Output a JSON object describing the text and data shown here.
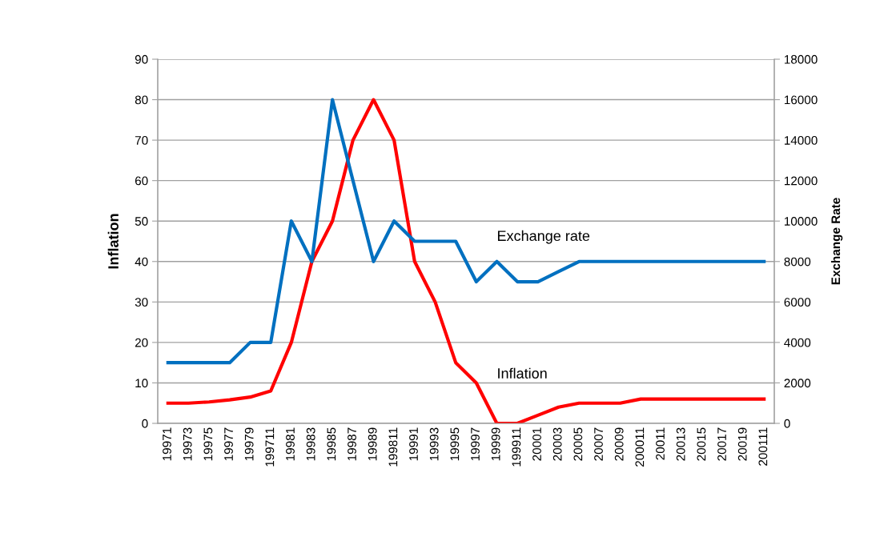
{
  "chart_data": {
    "type": "line",
    "xlabel": null,
    "ylabel": "Inflation",
    "y2label": "Exchange Rate",
    "categories": [
      "19971",
      "19973",
      "19975",
      "19977",
      "19979",
      "199711",
      "19981",
      "19983",
      "19985",
      "19987",
      "19989",
      "199811",
      "19991",
      "19993",
      "19995",
      "19997",
      "19999",
      "199911",
      "20001",
      "20003",
      "20005",
      "20007",
      "20009",
      "200011",
      "20011",
      "20013",
      "20015",
      "20017",
      "20019",
      "200111"
    ],
    "series": [
      {
        "name": "Inflation",
        "color": "#ff0000",
        "values": [
          5,
          5,
          5.3,
          5.8,
          6.5,
          8,
          20,
          40,
          50,
          70,
          80,
          70,
          40,
          30,
          15,
          10,
          0,
          0,
          2,
          4,
          5,
          5,
          5,
          6,
          6,
          6,
          6,
          6,
          6,
          6
        ]
      },
      {
        "name": "Exchange rate",
        "color": "#0070c0",
        "axis": "y2",
        "values": [
          3000,
          3000,
          3000,
          3000,
          4000,
          4000,
          10000,
          8000,
          16000,
          12000,
          8000,
          10000,
          9000,
          9000,
          9000,
          7000,
          8000,
          7000,
          7000,
          7500,
          8000,
          8000,
          8000,
          8000,
          8000,
          8000,
          8000,
          8000,
          8000,
          8000
        ]
      }
    ],
    "ylim": [
      0,
      90
    ],
    "yticks": [
      0,
      10,
      20,
      30,
      40,
      50,
      60,
      70,
      80,
      90
    ],
    "y2lim": [
      0,
      18000
    ],
    "y2ticks": [
      0,
      2000,
      4000,
      6000,
      8000,
      10000,
      12000,
      14000,
      16000,
      18000
    ],
    "grid": "y",
    "marker": "none",
    "line_style": "solid"
  }
}
